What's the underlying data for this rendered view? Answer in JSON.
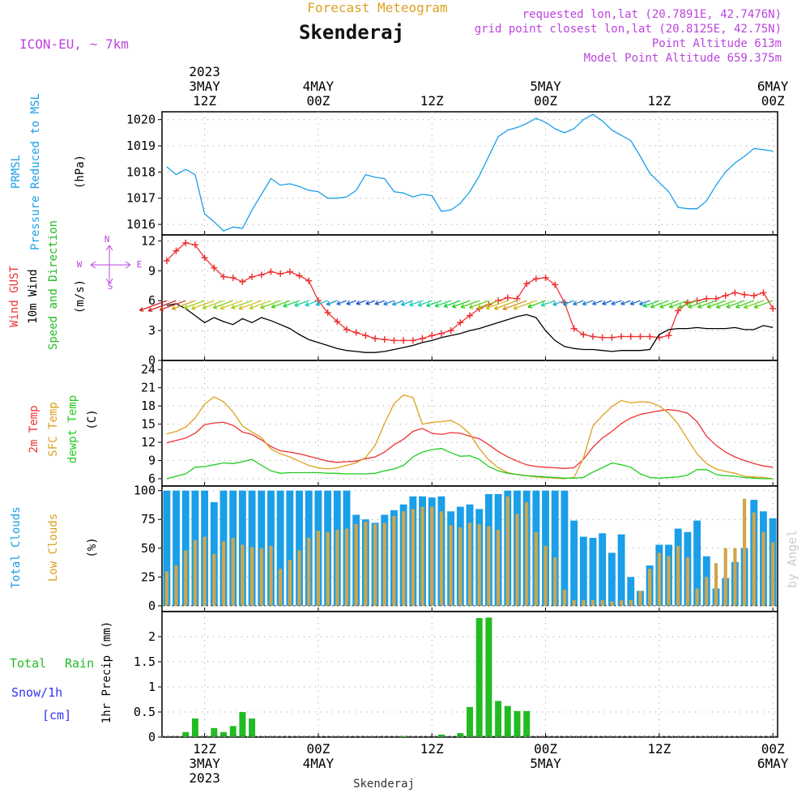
{
  "header": {
    "product": "Forecast Meteogram",
    "location": "Skenderaj",
    "model": "ICON-EU, ~ 7km",
    "requested": "requested lon,lat (20.7891E, 42.7476N)",
    "gridpoint": "grid point closest lon,lat (20.8125E, 42.75N)",
    "altitude": "Point Altitude 613m",
    "model_altitude": "Model Point Altitude 659.375m"
  },
  "footer": {
    "location": "Skenderaj",
    "credit": "by Angel"
  },
  "colors": {
    "pressure": "#1a9fe8",
    "gust": "#ee3333",
    "wind": "#000000",
    "wind_dir": "#22bb22",
    "temp2m": "#ee3333",
    "sfc": "#dda020",
    "dewpt": "#22cc22",
    "total_clouds": "#1a9fe8",
    "low_clouds": "#cfa64a",
    "rain": "#22bb22",
    "snow": "#3333ee",
    "compass": "#bb44dd",
    "title": "#dda020"
  },
  "chart_data": {
    "type": "meteogram",
    "time_axis": {
      "start": "2023-05-03 04Z",
      "step_hours": 1,
      "count": 65,
      "top_labels": [
        {
          "hour": 8,
          "lines": [
            "2023",
            "3MAY",
            "12Z"
          ]
        },
        {
          "hour": 20,
          "lines": [
            "4MAY",
            "00Z"
          ]
        },
        {
          "hour": 32,
          "lines": [
            "12Z"
          ]
        },
        {
          "hour": 44,
          "lines": [
            "5MAY",
            "00Z"
          ]
        },
        {
          "hour": 56,
          "lines": [
            "12Z"
          ]
        },
        {
          "hour": 68,
          "lines": [
            "6MAY",
            "00Z"
          ]
        }
      ],
      "bottom_labels": [
        {
          "hour": 8,
          "lines": [
            "12Z",
            "3MAY",
            "2023"
          ]
        },
        {
          "hour": 20,
          "lines": [
            "00Z",
            "4MAY"
          ]
        },
        {
          "hour": 32,
          "lines": [
            "12Z"
          ]
        },
        {
          "hour": 44,
          "lines": [
            "00Z",
            "5MAY"
          ]
        },
        {
          "hour": 56,
          "lines": [
            "12Z"
          ]
        },
        {
          "hour": 68,
          "lines": [
            "00Z",
            "6MAY"
          ]
        }
      ]
    },
    "panels": [
      {
        "id": "pressure",
        "ylabel_units": "(hPa)",
        "labels": [
          "PRMSL",
          "Pressure Reduced to MSL"
        ],
        "ylim": [
          1015.6,
          1020.3
        ],
        "ticks": [
          1016,
          1017,
          1018,
          1019,
          1020
        ],
        "series": [
          {
            "name": "PRMSL",
            "type": "line",
            "values": [
              1018.2,
              1017.9,
              1018.1,
              1017.9,
              1016.4,
              1016.1,
              1015.75,
              1015.9,
              1015.85,
              1016.55,
              1017.15,
              1017.75,
              1017.5,
              1017.55,
              1017.45,
              1017.3,
              1017.25,
              1017.0,
              1017.0,
              1017.05,
              1017.3,
              1017.9,
              1017.8,
              1017.75,
              1017.25,
              1017.2,
              1017.05,
              1017.15,
              1017.1,
              1016.5,
              1016.55,
              1016.8,
              1017.25,
              1017.85,
              1018.6,
              1019.35,
              1019.6,
              1019.7,
              1019.85,
              1020.05,
              1019.9,
              1019.65,
              1019.5,
              1019.65,
              1020.0,
              1020.2,
              1019.95,
              1019.6,
              1019.4,
              1019.2,
              1018.6,
              1017.95,
              1017.6,
              1017.25,
              1016.65,
              1016.6,
              1016.6,
              1016.9,
              1017.5,
              1018.0,
              1018.35,
              1018.6,
              1018.9,
              1018.85,
              1018.8
            ]
          }
        ]
      },
      {
        "id": "wind",
        "ylabel_units": "(m/s)",
        "labels": [
          "Wind GUST",
          "10m Wind",
          "Speed and Direction"
        ],
        "compass": {
          "n": "N",
          "s": "S",
          "w": "W",
          "e": "E"
        },
        "ylim": [
          0,
          12.6
        ],
        "ticks": [
          0,
          3,
          6,
          9,
          12
        ],
        "series": [
          {
            "name": "Wind GUST",
            "type": "line-marker",
            "values": [
              10.0,
              11.0,
              11.8,
              11.6,
              10.3,
              9.3,
              8.4,
              8.3,
              7.9,
              8.4,
              8.6,
              8.9,
              8.7,
              8.9,
              8.5,
              8.0,
              6.0,
              4.8,
              3.9,
              3.1,
              2.8,
              2.5,
              2.2,
              2.1,
              2.0,
              2.0,
              2.0,
              2.2,
              2.5,
              2.7,
              3.0,
              3.8,
              4.5,
              5.2,
              5.6,
              6.0,
              6.3,
              6.2,
              7.7,
              8.2,
              8.3,
              7.6,
              5.8,
              3.2,
              2.6,
              2.4,
              2.3,
              2.3,
              2.4,
              2.4,
              2.4,
              2.4,
              2.3,
              2.5,
              5.0,
              5.8,
              6.0,
              6.2,
              6.2,
              6.5,
              6.8,
              6.6,
              6.5,
              6.8,
              5.2
            ]
          },
          {
            "name": "10m Wind",
            "type": "line",
            "values": [
              5.5,
              5.7,
              5.2,
              4.5,
              3.8,
              4.3,
              3.9,
              3.6,
              4.2,
              3.8,
              4.3,
              4.0,
              3.6,
              3.2,
              2.6,
              2.1,
              1.8,
              1.5,
              1.2,
              1.0,
              0.9,
              0.8,
              0.8,
              0.9,
              1.1,
              1.3,
              1.5,
              1.8,
              2.0,
              2.3,
              2.5,
              2.7,
              3.0,
              3.2,
              3.5,
              3.8,
              4.1,
              4.4,
              4.6,
              4.3,
              3.0,
              2.0,
              1.4,
              1.2,
              1.1,
              1.1,
              1.0,
              0.9,
              1.0,
              1.0,
              1.0,
              1.1,
              2.6,
              3.1,
              3.2,
              3.2,
              3.3,
              3.2,
              3.2,
              3.2,
              3.3,
              3.1,
              3.1,
              3.5,
              3.3
            ],
            "directions_deg": [
              250,
              250,
              250,
              250,
              250,
              250,
              250,
              250,
              250,
              250,
              250,
              250,
              250,
              250,
              250,
              250,
              250,
              250,
              250,
              250,
              250,
              250,
              250,
              250,
              250,
              250,
              250,
              250,
              250,
              250,
              250,
              250,
              250,
              250,
              250,
              250,
              250,
              250,
              250,
              250,
              250,
              250,
              250,
              250,
              250,
              250,
              250,
              250,
              250,
              250,
              250,
              250,
              250,
              250,
              250,
              250,
              250,
              250,
              250,
              250,
              250,
              250,
              250,
              250,
              250
            ]
          }
        ]
      },
      {
        "id": "temperature",
        "ylabel_units": "(C)",
        "labels": [
          "2m Temp",
          "SFC Temp",
          "dewpt Temp"
        ],
        "ylim": [
          4.8,
          25.5
        ],
        "ticks": [
          6,
          9,
          12,
          15,
          18,
          21,
          24
        ],
        "series": [
          {
            "name": "2m Temp",
            "type": "line",
            "values": [
              11.9,
              12.3,
              12.7,
              13.5,
              14.9,
              15.2,
              15.3,
              14.8,
              13.7,
              13.3,
              12.4,
              11.3,
              10.6,
              10.4,
              10.1,
              9.7,
              9.3,
              8.9,
              8.7,
              8.8,
              8.9,
              9.3,
              9.6,
              10.4,
              11.6,
              12.5,
              13.8,
              14.3,
              13.5,
              13.3,
              13.6,
              13.5,
              13.0,
              12.6,
              11.6,
              10.5,
              9.6,
              8.9,
              8.3,
              8.0,
              7.9,
              7.8,
              7.7,
              7.8,
              9.2,
              11.2,
              12.7,
              13.8,
              15.1,
              16.0,
              16.6,
              16.9,
              17.2,
              17.4,
              17.2,
              16.8,
              15.4,
              13.0,
              11.5,
              10.4,
              9.6,
              9.0,
              8.5,
              8.1,
              7.9
            ]
          },
          {
            "name": "SFC Temp",
            "type": "line",
            "values": [
              13.4,
              13.8,
              14.5,
              16.0,
              18.3,
              19.5,
              18.7,
              17.0,
              14.7,
              13.7,
              12.8,
              10.9,
              10.1,
              9.6,
              8.9,
              8.2,
              7.8,
              7.6,
              7.8,
              8.2,
              8.6,
              9.5,
              11.5,
              15.1,
              18.4,
              19.8,
              19.4,
              15.0,
              15.3,
              15.4,
              15.6,
              14.8,
              13.4,
              11.0,
              9.1,
              7.8,
              7.0,
              6.7,
              6.5,
              6.3,
              6.2,
              6.1,
              6.0,
              6.2,
              9.4,
              14.7,
              16.4,
              17.9,
              18.9,
              18.5,
              18.7,
              18.6,
              18.0,
              16.8,
              15.0,
              12.5,
              10.1,
              8.5,
              7.6,
              7.2,
              6.9,
              6.4,
              6.3,
              6.2,
              6.0
            ]
          },
          {
            "name": "dewpt Temp",
            "type": "line",
            "values": [
              6.0,
              6.4,
              6.8,
              7.9,
              8.0,
              8.3,
              8.6,
              8.5,
              8.8,
              9.2,
              8.2,
              7.3,
              6.9,
              7.0,
              7.0,
              7.0,
              7.0,
              6.9,
              6.9,
              6.8,
              6.8,
              6.8,
              6.9,
              7.3,
              7.6,
              8.2,
              9.6,
              10.4,
              10.8,
              11.0,
              10.3,
              9.7,
              9.8,
              9.2,
              8.0,
              7.3,
              6.9,
              6.7,
              6.5,
              6.4,
              6.3,
              6.2,
              6.1,
              6.1,
              6.2,
              7.1,
              7.8,
              8.6,
              8.3,
              7.9,
              6.8,
              6.2,
              6.1,
              6.2,
              6.3,
              6.6,
              7.5,
              7.5,
              6.7,
              6.5,
              6.4,
              6.2,
              6.1,
              6.0,
              6.0
            ]
          }
        ]
      },
      {
        "id": "clouds",
        "ylabel_units": "(%)",
        "labels": [
          "Total Clouds",
          "Low Clouds"
        ],
        "ylim": [
          -5,
          104
        ],
        "ticks": [
          0,
          25,
          50,
          75,
          100
        ],
        "series": [
          {
            "name": "Total Clouds",
            "type": "bar",
            "values": [
              100,
              100,
              100,
              100,
              100,
              90,
              100,
              100,
              100,
              100,
              100,
              100,
              100,
              100,
              100,
              100,
              100,
              100,
              100,
              100,
              79,
              75,
              72,
              79,
              83,
              88,
              95,
              95,
              94,
              95,
              82,
              86,
              88,
              84,
              97,
              97,
              100,
              100,
              100,
              100,
              100,
              100,
              100,
              74,
              60,
              59,
              63,
              46,
              62,
              25,
              13,
              35,
              53,
              53,
              67,
              64,
              74,
              43,
              15,
              24,
              38,
              50,
              92,
              82,
              76
            ]
          },
          {
            "name": "Low Clouds",
            "type": "bar",
            "values": [
              30,
              35,
              48,
              57,
              60,
              45,
              56,
              59,
              53,
              51,
              50,
              52,
              32,
              40,
              48,
              59,
              65,
              64,
              66,
              67,
              71,
              73,
              71,
              72,
              78,
              82,
              84,
              86,
              86,
              82,
              70,
              68,
              72,
              71,
              69,
              66,
              95,
              80,
              90,
              64,
              52,
              42,
              14,
              5,
              5,
              5,
              5,
              4,
              5,
              5,
              13,
              32,
              46,
              43,
              52,
              42,
              15,
              25,
              37,
              50,
              50,
              93,
              81,
              64,
              55
            ]
          }
        ]
      },
      {
        "id": "precip",
        "ylabel_units": "1hr Precip (mm)",
        "labels": [
          "Total",
          "Rain",
          "Snow/1h",
          "[cm]"
        ],
        "ylim": [
          0,
          2.5
        ],
        "ticks": [
          0,
          0.5,
          1,
          1.5,
          2
        ],
        "series": [
          {
            "name": "Rain",
            "type": "bar",
            "values": [
              0,
              0,
              0.1,
              0.37,
              0,
              0.18,
              0.1,
              0.22,
              0.5,
              0.37,
              0,
              0,
              0,
              0,
              0,
              0,
              0,
              0,
              0,
              0,
              0,
              0,
              0,
              0,
              0,
              0.02,
              0,
              0,
              0,
              0.05,
              0,
              0.08,
              0.6,
              2.37,
              2.38,
              0.72,
              0.62,
              0.52,
              0.52,
              0,
              0,
              0,
              0,
              0,
              0,
              0,
              0,
              0,
              0,
              0,
              0,
              0,
              0,
              0,
              0,
              0,
              0,
              0,
              0,
              0,
              0,
              0,
              0,
              0,
              0
            ]
          }
        ]
      }
    ]
  }
}
